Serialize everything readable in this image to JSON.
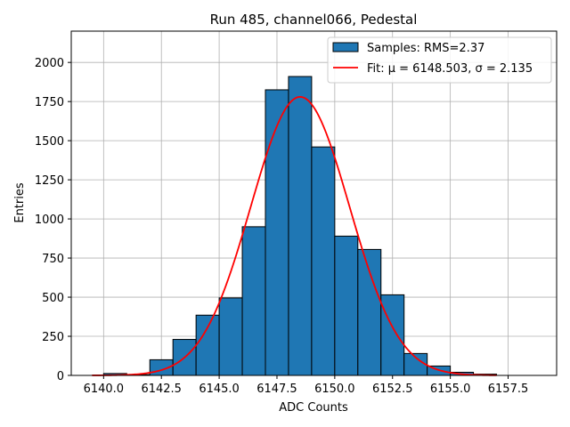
{
  "chart_data": {
    "type": "bar",
    "title": "Run 485, channel066, Pedestal",
    "xlabel": "ADC Counts",
    "ylabel": "Entries",
    "xlim": [
      6138.6,
      6159.6
    ],
    "ylim": [
      0,
      2200
    ],
    "xticks": [
      "6140.0",
      "6142.5",
      "6145.0",
      "6147.5",
      "6150.0",
      "6152.5",
      "6155.0",
      "6157.5"
    ],
    "xtick_values": [
      6140.0,
      6142.5,
      6145.0,
      6147.5,
      6150.0,
      6152.5,
      6155.0,
      6157.5
    ],
    "yticks": [
      "0",
      "250",
      "500",
      "750",
      "1000",
      "1250",
      "1500",
      "1750",
      "2000"
    ],
    "ytick_values": [
      0,
      250,
      500,
      750,
      1000,
      1250,
      1500,
      1750,
      2000
    ],
    "grid": true,
    "legend_position": "top-right",
    "histogram": {
      "name": "Samples: RMS=2.37",
      "color": "#1f77b4",
      "edge_color": "#000000",
      "bins": [
        {
          "start": 6140,
          "end": 6141,
          "value": 12
        },
        {
          "start": 6141,
          "end": 6142,
          "value": 5
        },
        {
          "start": 6142,
          "end": 6143,
          "value": 100
        },
        {
          "start": 6143,
          "end": 6144,
          "value": 230
        },
        {
          "start": 6144,
          "end": 6145,
          "value": 385
        },
        {
          "start": 6145,
          "end": 6146,
          "value": 495
        },
        {
          "start": 6146,
          "end": 6147,
          "value": 950
        },
        {
          "start": 6147,
          "end": 6148,
          "value": 1825
        },
        {
          "start": 6148,
          "end": 6149,
          "value": 1910
        },
        {
          "start": 6149,
          "end": 6150,
          "value": 1460
        },
        {
          "start": 6150,
          "end": 6151,
          "value": 890
        },
        {
          "start": 6151,
          "end": 6152,
          "value": 805
        },
        {
          "start": 6152,
          "end": 6153,
          "value": 515
        },
        {
          "start": 6153,
          "end": 6154,
          "value": 140
        },
        {
          "start": 6154,
          "end": 6155,
          "value": 60
        },
        {
          "start": 6155,
          "end": 6156,
          "value": 20
        },
        {
          "start": 6156,
          "end": 6157,
          "value": 8
        }
      ]
    },
    "fit": {
      "name": "Fit: μ = 6148.503, σ = 2.135",
      "color": "#ff0000",
      "mu": 6148.503,
      "sigma": 2.135,
      "amplitude": 1780,
      "x_range": [
        6139.5,
        6157.0
      ]
    }
  }
}
